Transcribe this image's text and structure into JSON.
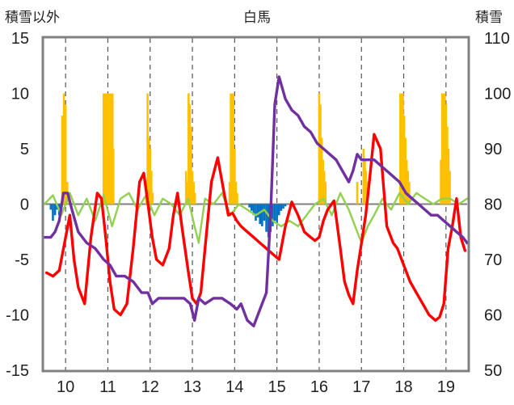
{
  "chart_data": {
    "type": "line",
    "title": "白馬",
    "ylabel_left": "積雪以外",
    "ylabel_right": "積雪",
    "ylim_left": [
      -15,
      15
    ],
    "ylim_right": [
      50,
      110
    ],
    "left_ticks": [
      "15",
      "10",
      "5",
      "0",
      "-5",
      "-10",
      "-15"
    ],
    "right_ticks": [
      "110",
      "100",
      "90",
      "80",
      "70",
      "60",
      "50"
    ],
    "categories": [
      "10",
      "11",
      "12",
      "13",
      "14",
      "15",
      "16",
      "17",
      "18",
      "19"
    ],
    "x_range": [
      9.5,
      19.5
    ],
    "grid": "dashed vertical at each day, solid horizontal at 0",
    "colors": {
      "red": "#ff0000",
      "purple": "#7030a0",
      "green": "#92d050",
      "orange": "#ffc000",
      "blue": "#0070c0",
      "frame": "#808080"
    },
    "series": [
      {
        "color": "red",
        "axis": "left",
        "x": [
          9.55,
          9.7,
          9.85,
          10.0,
          10.1,
          10.2,
          10.3,
          10.45,
          10.6,
          10.75,
          10.85,
          10.95,
          11.05,
          11.15,
          11.3,
          11.45,
          11.6,
          11.75,
          11.85,
          11.95,
          12.05,
          12.15,
          12.3,
          12.45,
          12.55,
          12.65,
          12.75,
          12.9,
          13.0,
          13.1,
          13.2,
          13.3,
          13.45,
          13.6,
          13.75,
          13.85,
          13.95,
          14.05,
          14.15,
          14.3,
          14.45,
          14.6,
          14.75,
          14.9,
          15.05,
          15.2,
          15.35,
          15.5,
          15.65,
          15.8,
          15.9,
          16.0,
          16.1,
          16.2,
          16.35,
          16.5,
          16.6,
          16.7,
          16.8,
          16.9,
          17.0,
          17.1,
          17.2,
          17.3,
          17.45,
          17.6,
          17.75,
          17.85,
          17.95,
          18.05,
          18.15,
          18.3,
          18.45,
          18.6,
          18.75,
          18.85,
          18.95,
          19.05,
          19.15,
          19.25,
          19.35,
          19.45
        ],
        "values": [
          -6.2,
          -6.5,
          -6.0,
          -3.0,
          -1.0,
          -5.0,
          -7.5,
          -9.0,
          -3.0,
          1.0,
          0.5,
          -3.0,
          -7.0,
          -9.5,
          -10.0,
          -9.0,
          -4.0,
          2.0,
          2.8,
          0.0,
          -3.0,
          -5.0,
          -5.5,
          -4.0,
          -1.0,
          1.0,
          -2.0,
          -6.0,
          -8.5,
          -9.0,
          -8.0,
          -4.0,
          2.0,
          4.2,
          1.0,
          -1.0,
          -0.8,
          -1.5,
          -2.0,
          -2.5,
          -3.0,
          -3.5,
          -4.0,
          -4.5,
          -5.0,
          -2.0,
          0.2,
          -1.0,
          -2.5,
          -3.0,
          -3.3,
          -3.0,
          -1.5,
          -0.5,
          0.3,
          -4.0,
          -7.0,
          -8.2,
          -9.0,
          -6.0,
          -3.5,
          -1.0,
          2.5,
          6.3,
          5.0,
          -2.0,
          -3.5,
          -4.0,
          -5.0,
          -6.0,
          -7.0,
          -8.0,
          -9.0,
          -10.0,
          -10.5,
          -10.2,
          -9.0,
          -4.0,
          -2.0,
          0.5,
          -3.0,
          -4.2
        ]
      },
      {
        "color": "purple",
        "axis": "right",
        "x": [
          9.5,
          9.65,
          9.75,
          9.85,
          9.95,
          10.05,
          10.15,
          10.3,
          10.5,
          10.7,
          10.9,
          11.05,
          11.2,
          11.4,
          11.6,
          11.8,
          11.95,
          12.05,
          12.2,
          12.4,
          12.6,
          12.8,
          12.95,
          13.05,
          13.15,
          13.3,
          13.5,
          13.7,
          13.9,
          14.05,
          14.15,
          14.3,
          14.45,
          14.6,
          14.75,
          14.85,
          14.95,
          15.05,
          15.2,
          15.35,
          15.5,
          15.65,
          15.8,
          15.95,
          16.1,
          16.25,
          16.4,
          16.55,
          16.7,
          16.8,
          16.9,
          17.0,
          17.15,
          17.3,
          17.45,
          17.6,
          17.75,
          17.9,
          18.05,
          18.2,
          18.35,
          18.5,
          18.65,
          18.8,
          18.95,
          19.1,
          19.25,
          19.4,
          19.5
        ],
        "values": [
          74,
          74,
          75,
          77,
          82,
          82,
          79,
          75,
          73,
          72,
          70,
          69,
          67,
          67,
          66,
          64,
          64,
          62,
          63,
          63,
          63,
          63,
          62,
          59,
          63,
          62,
          63,
          63,
          62,
          61,
          62,
          59,
          58,
          61,
          64,
          78,
          98,
          103,
          99,
          97,
          96,
          94,
          93,
          91,
          90,
          89,
          88,
          86,
          84,
          86,
          89,
          88,
          88,
          88,
          87,
          86,
          85,
          84,
          82,
          81,
          80,
          79,
          78,
          78,
          77,
          76,
          75,
          74,
          73
        ]
      },
      {
        "color": "green",
        "axis": "left",
        "x": [
          9.5,
          9.7,
          9.9,
          10.1,
          10.3,
          10.5,
          10.7,
          10.9,
          11.1,
          11.3,
          11.5,
          11.7,
          11.9,
          12.1,
          12.3,
          12.5,
          12.7,
          12.9,
          13.05,
          13.15,
          13.3,
          13.5,
          13.7,
          13.9,
          14.1,
          14.3,
          14.5,
          14.7,
          14.9,
          15.1,
          15.3,
          15.5,
          15.7,
          15.9,
          16.1,
          16.3,
          16.5,
          16.7,
          16.85,
          17.0,
          17.15,
          17.3,
          17.5,
          17.7,
          17.9,
          18.1,
          18.3,
          18.5,
          18.7,
          18.9,
          19.1,
          19.3,
          19.5
        ],
        "values": [
          0.0,
          0.8,
          -1.0,
          1.0,
          -1.0,
          0.5,
          -1.5,
          0.8,
          -2.0,
          0.5,
          1.0,
          -0.5,
          0.8,
          -1.0,
          0.5,
          0.0,
          -1.0,
          0.5,
          -2.0,
          -3.5,
          0.5,
          0.0,
          1.0,
          -1.0,
          0.0,
          -0.5,
          -1.0,
          -0.5,
          -1.5,
          -2.0,
          -1.5,
          -2.0,
          -1.0,
          0.0,
          0.5,
          -1.0,
          1.0,
          -0.5,
          -2.0,
          -3.5,
          -2.0,
          -1.0,
          0.5,
          -0.5,
          1.0,
          0.0,
          1.0,
          0.5,
          0.0,
          0.5,
          0.5,
          0.0,
          0.5
        ]
      }
    ],
    "bars": [
      {
        "color": "orange",
        "axis": "left",
        "x": [
          9.92,
          9.96,
          10.0,
          10.04,
          10.9,
          10.93,
          10.96,
          10.99,
          11.02,
          11.05,
          11.08,
          11.11,
          11.13,
          11.91,
          11.94,
          11.97,
          12.0,
          12.03,
          12.06,
          12.85,
          12.88,
          12.91,
          12.94,
          12.97,
          13.0,
          13.03,
          13.06,
          13.88,
          13.91,
          13.94,
          13.97,
          14.0,
          14.03,
          14.06,
          16.0,
          16.03,
          16.06,
          16.09,
          16.12,
          16.15,
          16.9,
          17.05,
          17.08,
          17.11,
          17.14,
          17.92,
          17.95,
          17.98,
          18.01,
          18.04,
          18.07,
          18.1,
          18.13,
          18.88,
          18.91,
          18.94,
          18.97,
          19.0,
          19.03,
          19.06,
          19.09
        ],
        "values": [
          8,
          10,
          9,
          2,
          10,
          10,
          10,
          10,
          10,
          10,
          10,
          10,
          5,
          2,
          10,
          6,
          5,
          3,
          1,
          3,
          2,
          10,
          9,
          7,
          3,
          2,
          1,
          2,
          10,
          10,
          10,
          5,
          2,
          1,
          10,
          9,
          6,
          4,
          3,
          2,
          2,
          5,
          4,
          3,
          2,
          10,
          10,
          10,
          8,
          6,
          4,
          3,
          2,
          4,
          10,
          10,
          10,
          9,
          7,
          5,
          3
        ]
      },
      {
        "color": "blue",
        "axis": "left",
        "x": [
          9.65,
          9.7,
          9.75,
          9.8,
          9.85,
          14.35,
          14.4,
          14.45,
          14.5,
          14.55,
          14.6,
          14.65,
          14.7,
          14.75,
          14.8,
          14.85,
          14.9,
          14.95,
          15.0,
          15.05,
          15.1,
          15.15,
          15.2
        ],
        "values": [
          -0.5,
          -1.5,
          -1.0,
          -0.5,
          -1.0,
          -0.3,
          -0.6,
          -1.0,
          -1.5,
          -1.2,
          -1.8,
          -2.0,
          -1.5,
          -2.5,
          -3.0,
          -2.5,
          -2.0,
          -1.5,
          -1.8,
          -1.0,
          -0.6,
          -0.4,
          -0.2
        ]
      }
    ]
  }
}
